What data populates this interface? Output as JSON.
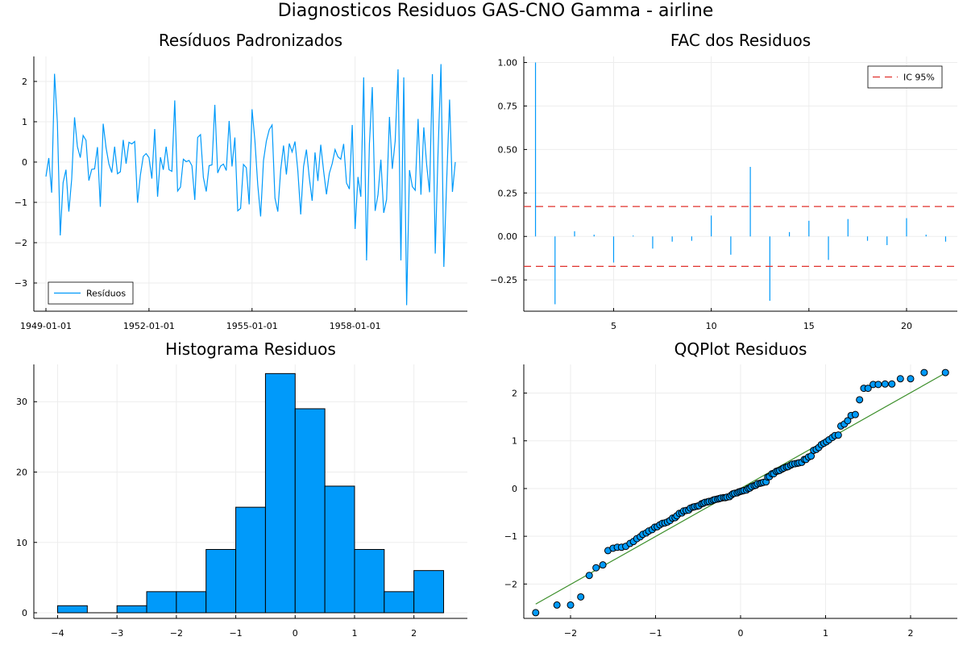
{
  "figure": {
    "suptitle": "Diagnosticos Residuos  GAS-CNO Gamma - airline"
  },
  "colors": {
    "series": "#009AFA",
    "ci": "#E0302C",
    "qqline": "#3C8F2A",
    "axis": "#000000",
    "grid": "#EDEDED"
  },
  "chart_data": [
    {
      "type": "line",
      "title": "Resíduos Padronizados",
      "series": [
        {
          "name": "Resíduos",
          "values": [
            -0.36,
            0.1,
            -0.76,
            2.19,
            0.98,
            -1.82,
            -0.51,
            -0.19,
            -1.23,
            -0.42,
            1.11,
            0.38,
            0.11,
            0.66,
            0.54,
            -0.46,
            -0.18,
            -0.17,
            0.37,
            -1.11,
            0.95,
            0.36,
            -0.05,
            -0.26,
            0.38,
            -0.29,
            -0.24,
            0.55,
            -0.04,
            0.49,
            0.45,
            0.51,
            -1.01,
            -0.32,
            0.14,
            0.21,
            0.11,
            -0.41,
            0.82,
            -0.86,
            0.12,
            -0.19,
            0.38,
            -0.19,
            -0.23,
            1.53,
            -0.72,
            -0.62,
            0.07,
            0.01,
            0.04,
            -0.09,
            -0.94,
            0.61,
            0.68,
            -0.38,
            -0.73,
            -0.09,
            -0.07,
            1.42,
            -0.27,
            -0.1,
            -0.05,
            -0.21,
            1.02,
            -0.11,
            0.61,
            -1.21,
            -1.15,
            -0.06,
            -0.14,
            -1.05,
            1.31,
            0.53,
            -0.57,
            -1.35,
            0.04,
            0.52,
            0.8,
            0.92,
            -0.89,
            -1.23,
            -0.2,
            0.41,
            -0.31,
            0.46,
            0.25,
            0.51,
            -0.22,
            -1.3,
            -0.11,
            0.31,
            -0.39,
            -0.96,
            0.24,
            -0.47,
            0.43,
            -0.22,
            -0.8,
            -0.28,
            -0.04,
            0.31,
            0.13,
            0.07,
            0.45,
            -0.52,
            -0.67,
            0.92,
            -1.66,
            -0.37,
            -0.86,
            2.1,
            -2.44,
            0.45,
            1.86,
            -1.21,
            -0.81,
            0.06,
            -1.26,
            -0.93,
            1.12,
            -0.17,
            0.52,
            2.3,
            -2.44,
            2.1,
            -3.55,
            -0.2,
            -0.61,
            -0.7,
            1.07,
            -0.81,
            0.86,
            -0.07,
            -0.75,
            2.18,
            -2.27,
            0.31,
            2.43,
            -2.6,
            -0.45,
            1.55,
            -0.74,
            0.0
          ]
        }
      ],
      "x_ticks": [
        "1949-01-01",
        "1952-01-01",
        "1955-01-01",
        "1958-01-01"
      ],
      "ylim": [
        -3.7,
        2.62
      ],
      "y_ticks": [
        2,
        1,
        0,
        -1,
        -2,
        -3
      ],
      "y_tick_labels": [
        "2",
        "1",
        "0",
        "−1",
        "−2",
        "−3"
      ],
      "legend": "bottom-left",
      "grid": true
    },
    {
      "type": "bar",
      "title": "FAC dos Residuos",
      "lags": [
        1,
        2,
        3,
        4,
        5,
        6,
        7,
        8,
        9,
        10,
        11,
        12,
        13,
        14,
        15,
        16,
        17,
        18,
        19,
        20,
        21,
        22
      ],
      "values": [
        1.0,
        -0.39,
        0.03,
        0.01,
        -0.15,
        0.005,
        -0.07,
        -0.03,
        -0.025,
        0.12,
        -0.105,
        0.4,
        -0.37,
        0.025,
        0.09,
        -0.135,
        0.1,
        -0.025,
        -0.05,
        0.105,
        0.01,
        -0.03
      ],
      "ci_label": "IC 95%",
      "ci": 0.172,
      "xlim": [
        0.4,
        22.6
      ],
      "ylim": [
        -0.43,
        1.035
      ],
      "x_ticks": [
        5,
        10,
        15,
        20
      ],
      "y_ticks": [
        1.0,
        0.75,
        0.5,
        0.25,
        0.0,
        -0.25
      ],
      "y_tick_labels": [
        "1.00",
        "0.75",
        "0.50",
        "0.25",
        "0.00",
        "−0.25"
      ],
      "legend": "top-right",
      "grid": true
    },
    {
      "type": "bar",
      "title": "Histograma Residuos",
      "bin_edges": [
        -4,
        -3.5,
        -3,
        -2.5,
        -2,
        -1.5,
        -1,
        -0.5,
        0,
        0.5,
        1,
        1.5,
        2,
        2.5
      ],
      "values": [
        1,
        0,
        1,
        3,
        3,
        9,
        15,
        34,
        29,
        18,
        9,
        3,
        6
      ],
      "xlim": [
        -4.4,
        2.9
      ],
      "ylim": [
        -0.8,
        35.3
      ],
      "x_ticks": [
        -4,
        -3,
        -2,
        -1,
        0,
        1,
        2
      ],
      "x_tick_labels": [
        "−4",
        "−3",
        "−2",
        "−1",
        "0",
        "1",
        "2"
      ],
      "y_ticks": [
        0,
        10,
        20,
        30
      ],
      "grid": true
    },
    {
      "type": "scatter",
      "title": "QQPlot Residuos",
      "x": [
        -2.41,
        -2.16,
        -2.0,
        -1.88,
        -1.78,
        -1.7,
        -1.62,
        -1.56,
        -1.5,
        -1.45,
        -1.4,
        -1.35,
        -1.3,
        -1.26,
        -1.22,
        -1.18,
        -1.15,
        -1.11,
        -1.08,
        -1.04,
        -1.01,
        -0.98,
        -0.95,
        -0.92,
        -0.89,
        -0.86,
        -0.83,
        -0.8,
        -0.77,
        -0.75,
        -0.72,
        -0.69,
        -0.67,
        -0.64,
        -0.61,
        -0.59,
        -0.56,
        -0.54,
        -0.51,
        -0.49,
        -0.46,
        -0.44,
        -0.42,
        -0.39,
        -0.37,
        -0.34,
        -0.32,
        -0.3,
        -0.27,
        -0.25,
        -0.23,
        -0.2,
        -0.18,
        -0.16,
        -0.13,
        -0.11,
        -0.09,
        -0.07,
        -0.04,
        -0.02,
        0.0,
        0.02,
        0.04,
        0.07,
        0.09,
        0.11,
        0.13,
        0.16,
        0.18,
        0.2,
        0.23,
        0.25,
        0.27,
        0.3,
        0.32,
        0.34,
        0.37,
        0.39,
        0.42,
        0.44,
        0.46,
        0.49,
        0.51,
        0.54,
        0.56,
        0.59,
        0.61,
        0.64,
        0.67,
        0.69,
        0.72,
        0.75,
        0.77,
        0.8,
        0.83,
        0.86,
        0.89,
        0.92,
        0.95,
        0.98,
        1.01,
        1.04,
        1.08,
        1.11,
        1.15,
        1.18,
        1.22,
        1.26,
        1.3,
        1.35,
        1.4,
        1.45,
        1.5,
        1.56,
        1.62,
        1.7,
        1.78,
        1.88,
        2.0,
        2.16,
        2.41
      ],
      "y": [
        -2.6,
        -2.44,
        -2.44,
        -2.27,
        -1.82,
        -1.66,
        -1.6,
        -1.3,
        -1.25,
        -1.23,
        -1.23,
        -1.21,
        -1.15,
        -1.11,
        -1.05,
        -1.01,
        -0.96,
        -0.93,
        -0.89,
        -0.86,
        -0.81,
        -0.8,
        -0.76,
        -0.73,
        -0.72,
        -0.7,
        -0.67,
        -0.62,
        -0.61,
        -0.57,
        -0.52,
        -0.51,
        -0.47,
        -0.46,
        -0.45,
        -0.41,
        -0.39,
        -0.38,
        -0.37,
        -0.36,
        -0.32,
        -0.31,
        -0.29,
        -0.28,
        -0.27,
        -0.26,
        -0.24,
        -0.23,
        -0.22,
        -0.21,
        -0.2,
        -0.19,
        -0.19,
        -0.18,
        -0.17,
        -0.14,
        -0.11,
        -0.1,
        -0.09,
        -0.07,
        -0.06,
        -0.05,
        -0.04,
        -0.03,
        0.0,
        0.01,
        0.04,
        0.06,
        0.07,
        0.1,
        0.11,
        0.12,
        0.13,
        0.14,
        0.24,
        0.25,
        0.31,
        0.31,
        0.36,
        0.37,
        0.38,
        0.41,
        0.43,
        0.45,
        0.46,
        0.49,
        0.51,
        0.52,
        0.53,
        0.54,
        0.55,
        0.61,
        0.61,
        0.66,
        0.68,
        0.8,
        0.82,
        0.86,
        0.92,
        0.95,
        0.98,
        1.02,
        1.07,
        1.11,
        1.12,
        1.31,
        1.35,
        1.42,
        1.53,
        1.55,
        1.86,
        2.1,
        2.18,
        2.19,
        2.3,
        2.43,
        2.1,
        2.19,
        2.18,
        2.3,
        2.43
      ],
      "xlim": [
        -2.55,
        2.55
      ],
      "ylim": [
        -2.72,
        2.6
      ],
      "x_ticks": [
        -2,
        -1,
        0,
        1,
        2
      ],
      "x_tick_labels": [
        "−2",
        "−1",
        "0",
        "1",
        "2"
      ],
      "y_ticks": [
        2,
        1,
        0,
        -1,
        -2
      ],
      "y_tick_labels": [
        "2",
        "1",
        "0",
        "−1",
        "−2"
      ],
      "reference_line": [
        [
          -2.41,
          -2.42
        ],
        [
          2.41,
          2.42
        ]
      ],
      "grid": true
    }
  ]
}
